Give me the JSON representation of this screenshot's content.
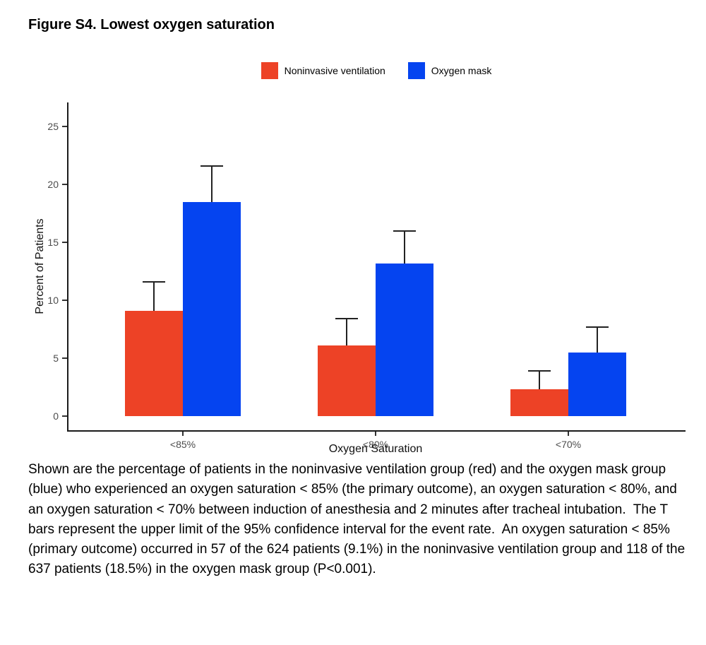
{
  "title": "Figure S4. Lowest oxygen saturation",
  "caption": "Shown are the percentage of patients in the noninvasive ventilation group (red) and the oxygen mask group (blue) who experienced an oxygen saturation < 85% (the primary outcome), an oxygen saturation < 80%, and an oxygen saturation < 70% between induction of anesthesia and 2 minutes after tracheal intubation.  The T bars represent the upper limit of the 95% confidence interval for the event rate.  An oxygen saturation < 85% (primary outcome) occurred in 57 of the 624 patients (9.1%) in the noninvasive ventilation group and 118 of the 637 patients (18.5%) in the oxygen mask group (P<0.001).",
  "colors": {
    "noninvasive_ventilation": "#ED4226",
    "oxygen_mask": "#0544F0",
    "axis_line": "#1a1a1a",
    "tick_label": "#4d4d4d"
  },
  "chart_data": {
    "type": "bar",
    "categories": [
      "<85%",
      "<80%",
      "<70%"
    ],
    "series": [
      {
        "name": "Noninvasive ventilation",
        "color": "#ED4226",
        "values": [
          9.1,
          6.1,
          2.3
        ],
        "ci_upper": [
          11.6,
          8.4,
          3.9
        ]
      },
      {
        "name": "Oxygen mask",
        "color": "#0544F0",
        "values": [
          18.5,
          13.2,
          5.5
        ],
        "ci_upper": [
          21.6,
          16.0,
          7.7
        ]
      }
    ],
    "xlabel": "Oxygen Saturation",
    "ylabel": "Percent of Patients",
    "ylim": [
      0,
      25
    ],
    "yticks": [
      0,
      5,
      10,
      15,
      20,
      25
    ],
    "legend_position": "top-center",
    "grid": false,
    "error_bars": "upper limit of 95% confidence interval"
  }
}
